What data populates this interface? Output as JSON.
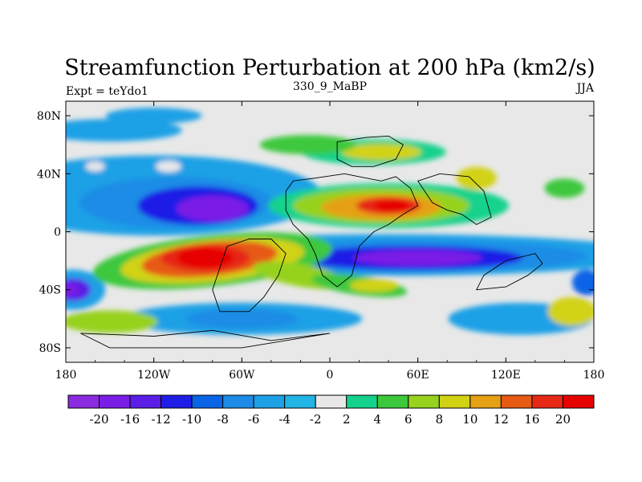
{
  "chart_data": {
    "type": "heatmap",
    "subtype": "filled-contour-map",
    "title": "Streamfunction Perturbation at 200 hPa (km2/s)",
    "left_label": "Expt = teYdo1",
    "center_label": "330_9_MaBP",
    "right_label": "JJA",
    "x_ticks": [
      "180",
      "120W",
      "60W",
      "0",
      "60E",
      "120E",
      "180"
    ],
    "x_tick_values": [
      -180,
      -120,
      -60,
      0,
      60,
      120,
      180
    ],
    "y_ticks": [
      "80N",
      "40N",
      "0",
      "40S",
      "80S"
    ],
    "y_tick_values": [
      80,
      40,
      0,
      -40,
      -80
    ],
    "xlim": [
      -180,
      180
    ],
    "ylim": [
      -90,
      90
    ],
    "colorbar_labels": [
      "-20",
      "-16",
      "-12",
      "-10",
      "-8",
      "-6",
      "-4",
      "-2",
      "2",
      "4",
      "6",
      "8",
      "10",
      "12",
      "16",
      "20"
    ],
    "colorbar_levels": [
      -20,
      -16,
      -12,
      -10,
      -8,
      -6,
      -4,
      -2,
      2,
      4,
      6,
      8,
      10,
      12,
      16,
      20
    ],
    "colorbar_colors": [
      "#8a2be0",
      "#7a1ee6",
      "#5a1ee6",
      "#1e1ee6",
      "#0a64e6",
      "#1e8ce6",
      "#1ea0e6",
      "#23b4e6",
      "#e8e8e8",
      "#14d28c",
      "#3cc83c",
      "#96d21e",
      "#d2d214",
      "#e6a014",
      "#e65a14",
      "#e62814",
      "#e60000"
    ],
    "extrema": [
      {
        "label": "max",
        "lon": -85,
        "lat": -18,
        "value": 23
      },
      {
        "label": "max",
        "lon": 40,
        "lat": 18,
        "value": 18
      },
      {
        "label": "min",
        "lon": -80,
        "lat": 16,
        "value": -19
      },
      {
        "label": "min",
        "lon": 60,
        "lat": -18,
        "value": -18
      },
      {
        "label": "min",
        "lon": -170,
        "lat": -40,
        "value": -16
      }
    ]
  }
}
